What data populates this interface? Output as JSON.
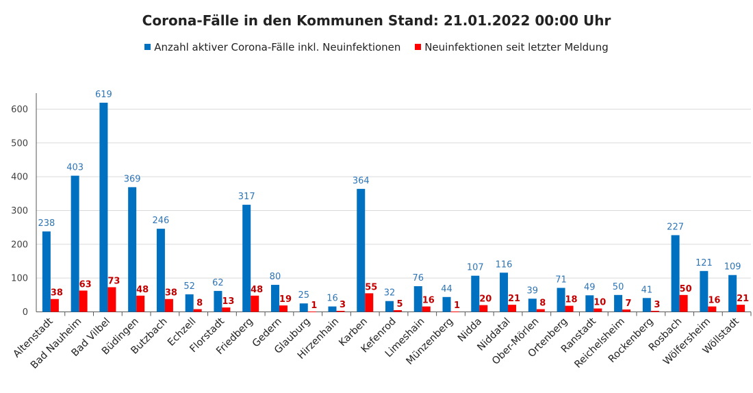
{
  "chart_data": {
    "type": "bar",
    "title": "Corona-Fälle in den Kommunen Stand: 21.01.2022 00:00 Uhr",
    "legend_position": "top",
    "grid": true,
    "ylim": [
      0,
      650
    ],
    "yticks": [
      0,
      100,
      200,
      300,
      400,
      500,
      600
    ],
    "categories": [
      "Altenstadt",
      "Bad Nauheim",
      "Bad Vilbel",
      "Büdingen",
      "Butzbach",
      "Echzell",
      "Florstadt",
      "Friedberg",
      "Gedern",
      "Glauburg",
      "Hirzenhain",
      "Karben",
      "Kefenrod",
      "Limeshain",
      "Münzenberg",
      "Nidda",
      "Niddatal",
      "Ober-Mörlen",
      "Ortenberg",
      "Ranstadt",
      "Reichelsheim",
      "Rockenberg",
      "Rosbach",
      "Wölfersheim",
      "Wöllstadt"
    ],
    "series": [
      {
        "name": "Anzahl aktiver Corona-Fälle inkl. Neuinfektionen",
        "color": "#0070C0",
        "values": [
          238,
          403,
          619,
          369,
          246,
          52,
          62,
          317,
          80,
          25,
          16,
          364,
          32,
          76,
          44,
          107,
          116,
          39,
          71,
          49,
          50,
          41,
          227,
          121,
          109
        ]
      },
      {
        "name": "Neuinfektionen seit letzter Meldung",
        "color": "#FF0000",
        "values": [
          38,
          63,
          73,
          48,
          38,
          8,
          13,
          48,
          19,
          1,
          3,
          55,
          5,
          16,
          1,
          20,
          21,
          8,
          18,
          10,
          7,
          3,
          50,
          16,
          21
        ]
      }
    ],
    "label_colors": {
      "series0": "#2E75B6",
      "series1": "#C00000"
    },
    "axis_color": "#555555",
    "grid_color": "#D9D9D9"
  }
}
